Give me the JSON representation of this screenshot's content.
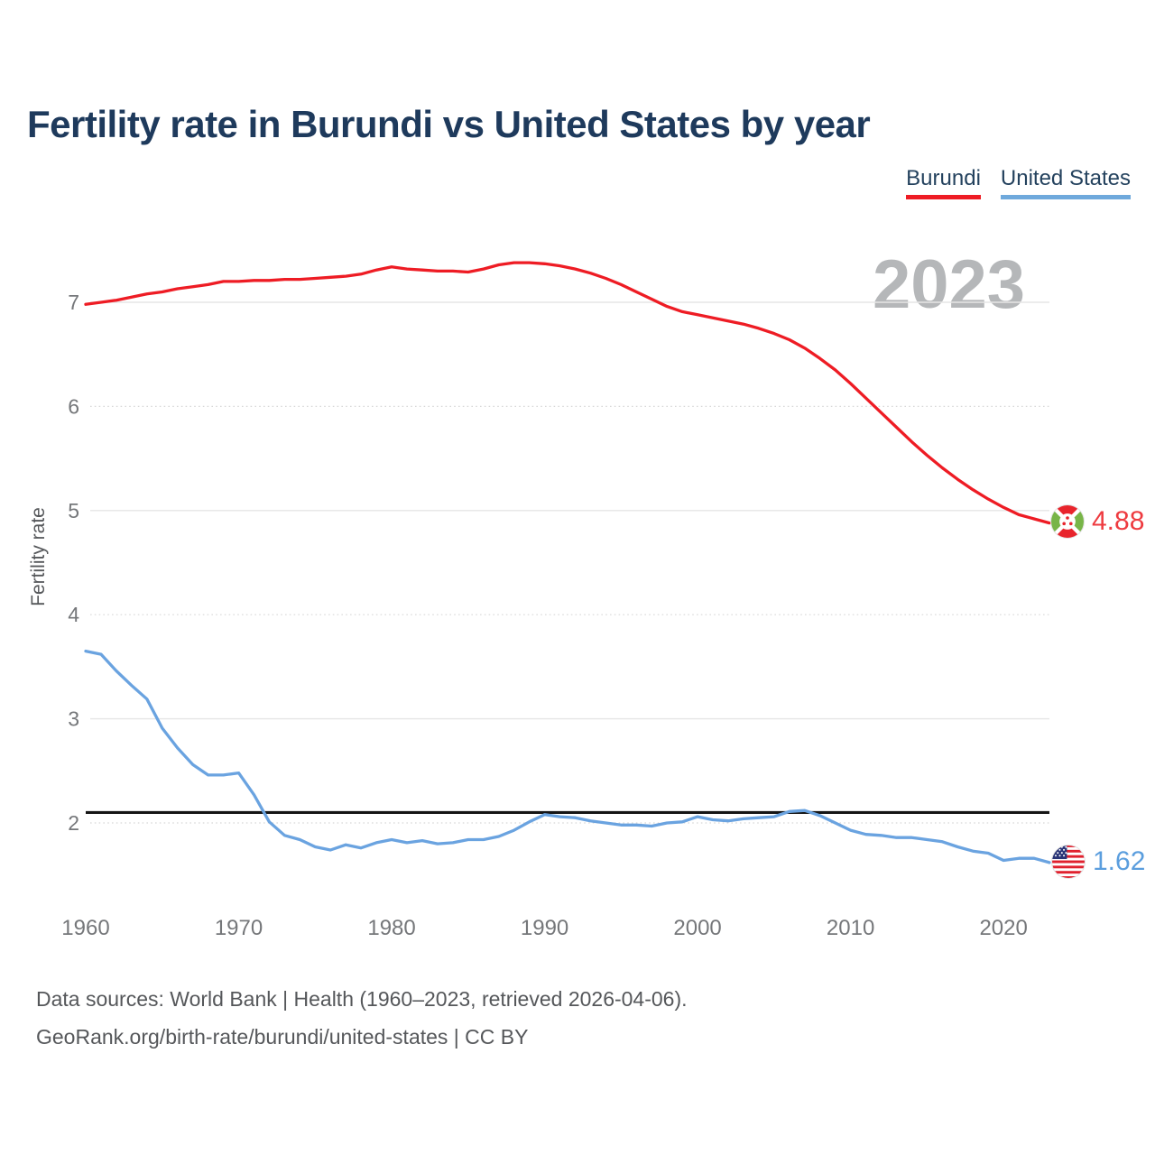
{
  "title": "Fertility rate in Burundi vs United States by year",
  "legend": {
    "items": [
      {
        "label": "Burundi",
        "color": "#ee1c24"
      },
      {
        "label": "United States",
        "color": "#6fa9dc"
      }
    ]
  },
  "watermark_year": "2023",
  "y_axis": {
    "label": "Fertility rate"
  },
  "endpoints": {
    "burundi": {
      "value": "4.88"
    },
    "us": {
      "value": "1.62"
    }
  },
  "footer": {
    "line1": "Data sources: World Bank | Health (1960–2023, retrieved 2026-04-06).",
    "line2": "GeoRank.org/birth-rate/burundi/united-states | CC BY"
  },
  "chart_data": {
    "type": "line",
    "title": "Fertility rate in Burundi vs United States by year",
    "xlabel": "",
    "ylabel": "Fertility rate",
    "x": [
      1960,
      1961,
      1962,
      1963,
      1964,
      1965,
      1966,
      1967,
      1968,
      1969,
      1970,
      1971,
      1972,
      1973,
      1974,
      1975,
      1976,
      1977,
      1978,
      1979,
      1980,
      1981,
      1982,
      1983,
      1984,
      1985,
      1986,
      1987,
      1988,
      1989,
      1990,
      1991,
      1992,
      1993,
      1994,
      1995,
      1996,
      1997,
      1998,
      1999,
      2000,
      2001,
      2002,
      2003,
      2004,
      2005,
      2006,
      2007,
      2008,
      2009,
      2010,
      2011,
      2012,
      2013,
      2014,
      2015,
      2016,
      2017,
      2018,
      2019,
      2020,
      2021,
      2022,
      2023
    ],
    "series": [
      {
        "name": "Burundi",
        "color": "#ee1c24",
        "values": [
          6.98,
          7.0,
          7.02,
          7.05,
          7.08,
          7.1,
          7.13,
          7.15,
          7.17,
          7.2,
          7.2,
          7.21,
          7.21,
          7.22,
          7.22,
          7.23,
          7.24,
          7.25,
          7.27,
          7.31,
          7.34,
          7.32,
          7.31,
          7.3,
          7.3,
          7.29,
          7.32,
          7.36,
          7.38,
          7.38,
          7.37,
          7.35,
          7.32,
          7.28,
          7.23,
          7.17,
          7.1,
          7.03,
          6.96,
          6.91,
          6.88,
          6.85,
          6.82,
          6.79,
          6.75,
          6.7,
          6.64,
          6.56,
          6.46,
          6.35,
          6.22,
          6.08,
          5.94,
          5.8,
          5.66,
          5.53,
          5.41,
          5.3,
          5.2,
          5.11,
          5.03,
          4.96,
          4.92,
          4.88
        ]
      },
      {
        "name": "United States",
        "color": "#6aa3e0",
        "values": [
          3.65,
          3.62,
          3.46,
          3.32,
          3.19,
          2.91,
          2.72,
          2.56,
          2.46,
          2.46,
          2.48,
          2.27,
          2.01,
          1.88,
          1.84,
          1.77,
          1.74,
          1.79,
          1.76,
          1.81,
          1.84,
          1.81,
          1.83,
          1.8,
          1.81,
          1.84,
          1.84,
          1.87,
          1.93,
          2.01,
          2.08,
          2.06,
          2.05,
          2.02,
          2.0,
          1.98,
          1.98,
          1.97,
          2.0,
          2.01,
          2.06,
          2.03,
          2.02,
          2.04,
          2.05,
          2.06,
          2.11,
          2.12,
          2.07,
          2.0,
          1.93,
          1.89,
          1.88,
          1.86,
          1.86,
          1.84,
          1.82,
          1.77,
          1.73,
          1.71,
          1.64,
          1.66,
          1.66,
          1.62
        ]
      }
    ],
    "x_ticks": [
      1960,
      1970,
      1980,
      1990,
      2000,
      2010,
      2020
    ],
    "y_ticks": [
      7,
      6,
      5,
      4,
      3,
      2
    ],
    "reference_line": 2.1,
    "xlim": [
      1960,
      2023
    ],
    "ylim": [
      1.3,
      7.5
    ],
    "grid": true,
    "legend_position": "top-right"
  }
}
